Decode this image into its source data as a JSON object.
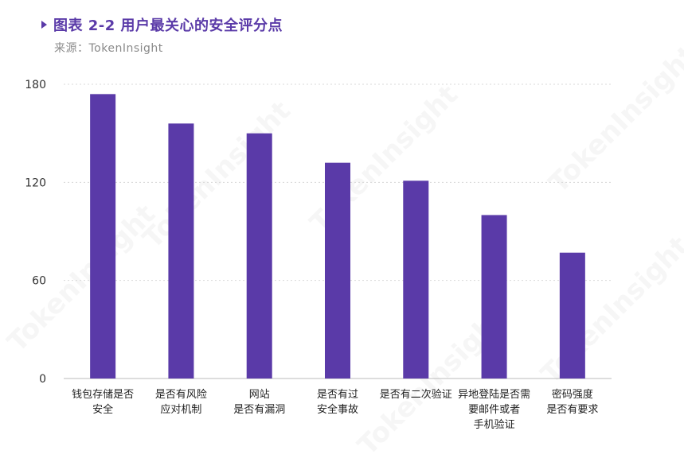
{
  "header": {
    "title": "图表 2-2 用户最关心的安全评分点",
    "source": "来源：TokenInsight"
  },
  "watermark": "TokenInsight",
  "colors": {
    "bar": "#5a3aa8",
    "title": "#5a3aa8",
    "grid": "#d8d8d8"
  },
  "chart_data": {
    "type": "bar",
    "categories": [
      [
        "钱包存储是否",
        "安全"
      ],
      [
        "是否有风险",
        "应对机制"
      ],
      [
        "网站",
        "是否有漏洞"
      ],
      [
        "是否有过",
        "安全事故"
      ],
      [
        "是否有二次验证"
      ],
      [
        "异地登陆是否需",
        "要邮件或者",
        "手机验证"
      ],
      [
        "密码强度",
        "是否有要求"
      ]
    ],
    "values": [
      174,
      156,
      150,
      132,
      121,
      100,
      77
    ],
    "yticks": [
      0,
      60,
      120,
      180
    ],
    "ylim": [
      0,
      180
    ],
    "grid": true,
    "legend": false
  }
}
